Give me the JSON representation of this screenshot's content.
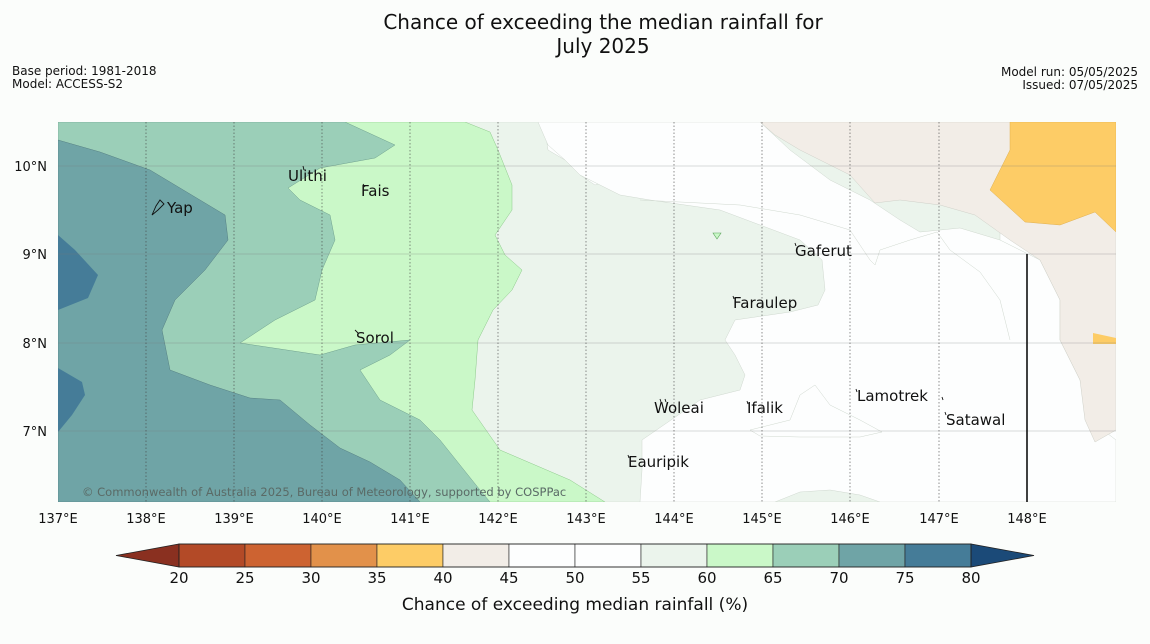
{
  "title_line1": "Chance of exceeding the median rainfall for",
  "title_line2": "July 2025",
  "base_period": "Base period: 1981-2018",
  "model": "Model: ACCESS-S2",
  "model_run": "Model run: 05/05/2025",
  "issued": "Issued: 07/05/2025",
  "copyright": "© Commonwealth of Australia 2025, Bureau of Meteorology, supported by COSPPac",
  "lon_labels": [
    "137°E",
    "138°E",
    "139°E",
    "140°E",
    "141°E",
    "142°E",
    "143°E",
    "144°E",
    "145°E",
    "146°E",
    "147°E",
    "148°E"
  ],
  "lat_labels": [
    "10°N",
    "9°N",
    "8°N",
    "7°N"
  ],
  "places": [
    {
      "name": "Ulithi"
    },
    {
      "name": "Fais"
    },
    {
      "name": "Yap"
    },
    {
      "name": "Gaferut"
    },
    {
      "name": "Faraulep"
    },
    {
      "name": "Sorol"
    },
    {
      "name": "Lamotrek"
    },
    {
      "name": "Woleai"
    },
    {
      "name": "Ifalik"
    },
    {
      "name": "Satawal"
    },
    {
      "name": "Eauripik"
    }
  ],
  "colorbar": {
    "ticks": [
      "20",
      "25",
      "30",
      "35",
      "40",
      "45",
      "50",
      "55",
      "60",
      "65",
      "70",
      "75",
      "80"
    ],
    "colors": [
      "#b34a27",
      "#cd6331",
      "#e2914a",
      "#fdcc66",
      "#f2ede7",
      "#fdfefe",
      "#fdfefe",
      "#ebf4ec",
      "#caf8c8",
      "#9bcfb8",
      "#6fa4a6",
      "#457c98"
    ],
    "under_color": "#8a3020",
    "over_color": "#1b4a78",
    "label": "Chance of exceeding median rainfall (%)"
  }
}
